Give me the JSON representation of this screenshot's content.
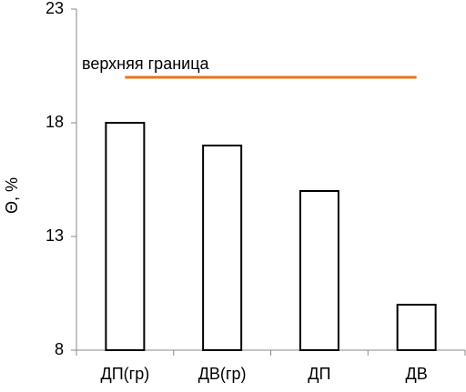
{
  "chart_data": {
    "type": "bar",
    "y_label": "Θ, %",
    "categories": [
      "ДП(гр)",
      "ДВ(гр)",
      "ДП",
      "ДВ"
    ],
    "values": [
      18,
      17,
      15,
      10
    ],
    "color": "#ffffff",
    "edge_color": "#000000",
    "ylim": [
      8,
      23
    ],
    "yticks": [
      8,
      13,
      18,
      23
    ],
    "reference_line": {
      "value": 20,
      "label": "верхняя граница",
      "color": "#e8731c"
    }
  }
}
